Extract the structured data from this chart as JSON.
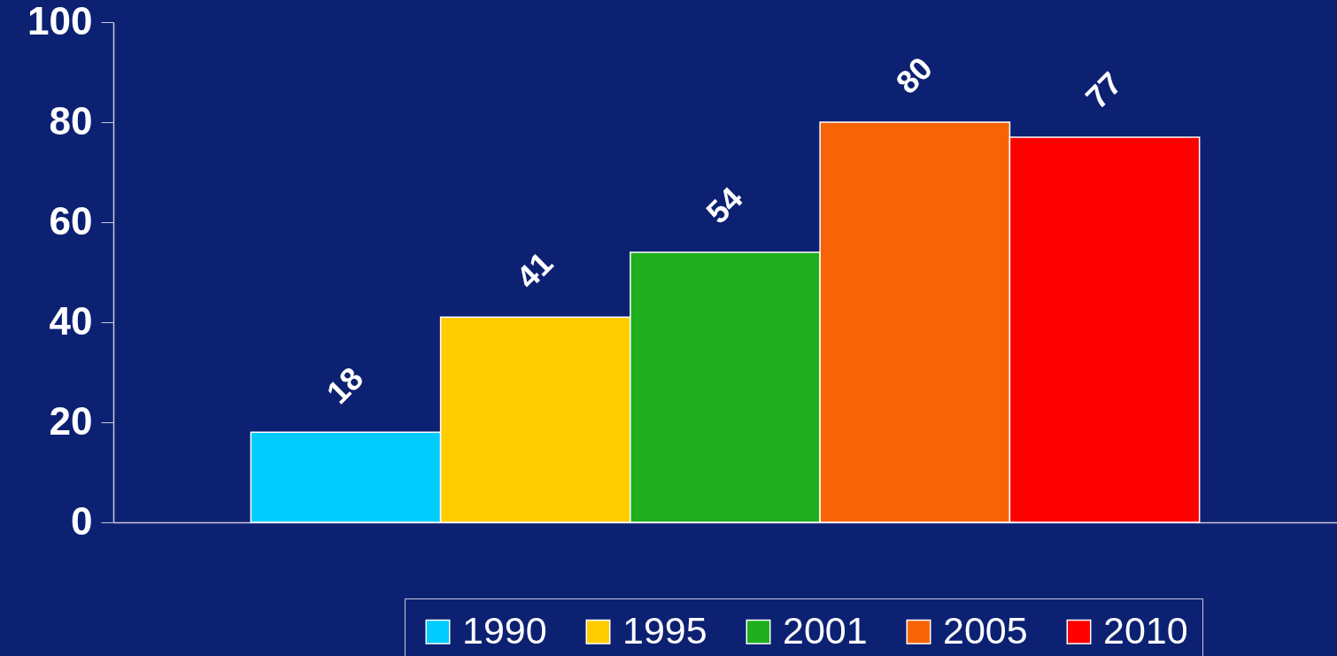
{
  "chart_data": {
    "type": "bar",
    "categories": [
      null
    ],
    "series": [
      {
        "name": "1990",
        "color": "#00ccff",
        "values": [
          18
        ]
      },
      {
        "name": "1995",
        "color": "#ffcc00",
        "values": [
          41
        ]
      },
      {
        "name": "2001",
        "color": "#1eae1e",
        "values": [
          54
        ]
      },
      {
        "name": "2005",
        "color": "#f76408",
        "values": [
          80
        ]
      },
      {
        "name": "2010",
        "color": "#ff0000",
        "values": [
          77
        ]
      }
    ],
    "ylim": [
      0,
      100
    ],
    "yticks": [
      0,
      20,
      40,
      60,
      80,
      100
    ],
    "data_labels": true,
    "legend": "bottom",
    "tick_labels": "y"
  }
}
